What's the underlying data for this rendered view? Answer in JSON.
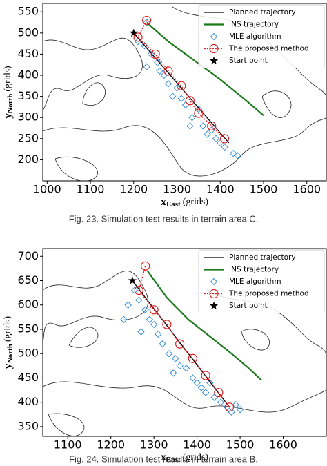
{
  "chart_data": [
    {
      "type": "line",
      "caption": "Fig. 23.  Simulation test results in terrain area C.",
      "xlabel": {
        "text": "x",
        "sub": "East",
        "unit": "(grids)"
      },
      "ylabel": {
        "text": "y",
        "sub": "North",
        "unit": "(grids)"
      },
      "xlim": [
        990,
        1645
      ],
      "ylim": [
        150,
        570
      ],
      "xticks": [
        1000,
        1100,
        1200,
        1300,
        1400,
        1500,
        1600
      ],
      "yticks": [
        200,
        250,
        300,
        350,
        400,
        450,
        500,
        550
      ],
      "legend": "upper right",
      "series": [
        {
          "name": "Planned trajectory",
          "color": "#000000",
          "style": "line",
          "x": [
            1200,
            1420
          ],
          "values": [
            500,
            240
          ]
        },
        {
          "name": "INS trajectory",
          "color": "#1a7a1a",
          "style": "line",
          "x": [
            1230,
            1280,
            1340,
            1400,
            1460,
            1500
          ],
          "values": [
            525,
            480,
            435,
            390,
            340,
            305
          ]
        },
        {
          "name": "MLE algorithm",
          "color": "#3a8fd9",
          "style": "diamond",
          "x": [
            1210,
            1225,
            1240,
            1255,
            1270,
            1230,
            1280,
            1300,
            1290,
            1320,
            1335,
            1350,
            1360,
            1370,
            1380,
            1400,
            1410,
            1430,
            1440,
            1330,
            1230,
            1390,
            1260,
            1310
          ],
          "values": [
            480,
            470,
            450,
            430,
            400,
            420,
            380,
            370,
            350,
            330,
            300,
            320,
            280,
            260,
            270,
            240,
            230,
            215,
            210,
            280,
            525,
            250,
            410,
            345
          ]
        },
        {
          "name": "The proposed method",
          "color": "#e02020",
          "style": "dotted-circle",
          "x": [
            1230,
            1210,
            1250,
            1280,
            1310,
            1330,
            1350,
            1380,
            1410
          ],
          "values": [
            530,
            490,
            450,
            410,
            375,
            340,
            310,
            280,
            250
          ]
        },
        {
          "name": "Start point",
          "color": "#000000",
          "style": "star",
          "x": [
            1200
          ],
          "values": [
            500
          ]
        }
      ]
    },
    {
      "type": "line",
      "caption": "Fig. 24.  Simulation test results in terrain area B.",
      "xlabel": {
        "text": "x",
        "sub": "East",
        "unit": "(grids)"
      },
      "ylabel": {
        "text": "y",
        "sub": "North",
        "unit": "(grids)"
      },
      "xlim": [
        1042,
        1700
      ],
      "ylim": [
        330,
        716
      ],
      "xticks": [
        1100,
        1200,
        1300,
        1400,
        1500,
        1600
      ],
      "yticks": [
        350,
        400,
        450,
        500,
        550,
        600,
        650,
        700
      ],
      "legend": "upper right",
      "series": [
        {
          "name": "Planned trajectory",
          "color": "#000000",
          "style": "line",
          "x": [
            1250,
            1475
          ],
          "values": [
            650,
            390
          ]
        },
        {
          "name": "INS trajectory",
          "color": "#1a7a1a",
          "style": "line",
          "x": [
            1285,
            1330,
            1380,
            1430,
            1480,
            1520,
            1550
          ],
          "values": [
            670,
            615,
            570,
            535,
            500,
            470,
            445
          ]
        },
        {
          "name": "MLE algorithm",
          "color": "#3a8fd9",
          "style": "diamond",
          "x": [
            1255,
            1265,
            1240,
            1280,
            1290,
            1300,
            1270,
            1310,
            1320,
            1335,
            1350,
            1360,
            1375,
            1390,
            1400,
            1410,
            1420,
            1440,
            1455,
            1470,
            1480,
            1490,
            1500,
            1230,
            1345,
            1430
          ],
          "values": [
            630,
            610,
            600,
            590,
            570,
            560,
            545,
            540,
            520,
            500,
            490,
            475,
            470,
            450,
            440,
            430,
            420,
            410,
            400,
            390,
            380,
            395,
            385,
            570,
            460,
            440
          ]
        },
        {
          "name": "The proposed method",
          "color": "#e02020",
          "style": "dotted-circle",
          "x": [
            1280,
            1265,
            1300,
            1330,
            1360,
            1390,
            1420,
            1450,
            1475
          ],
          "values": [
            680,
            630,
            590,
            560,
            520,
            490,
            455,
            420,
            390
          ]
        },
        {
          "name": "Start point",
          "color": "#000000",
          "style": "star",
          "x": [
            1250
          ],
          "values": [
            650
          ]
        }
      ]
    }
  ]
}
